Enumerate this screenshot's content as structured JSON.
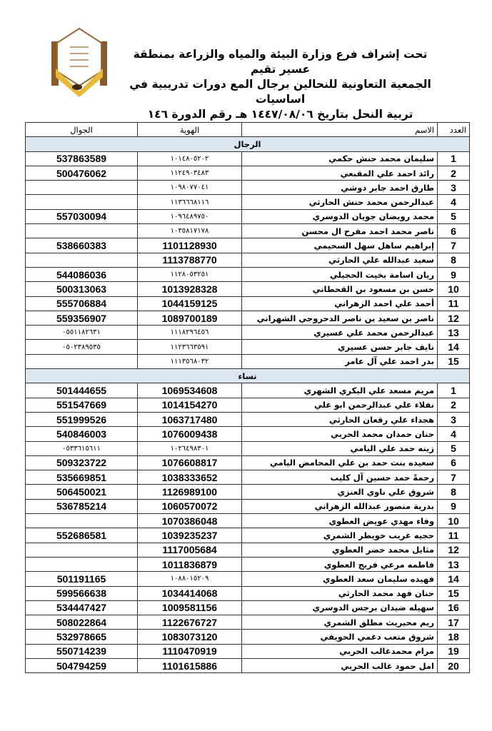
{
  "logo": {
    "text": "الجمعية التعاونية للنحالين برجال ألمع"
  },
  "header": {
    "lines": [
      "تحت إشراف فرع وزارة البيئة والمياه والزراعة بمنطقة عسير تقيم",
      "الجمعية التعاونية للنحالين برجال المع دورات تدريبية في اساسيات",
      "تربية النحل بتاريخ ١٤٤٧/٠٨/٠٦ هـ رقم الدورة ١٤٦"
    ]
  },
  "table": {
    "columns": [
      "العدد",
      "الاسم",
      "الهوية",
      "الجوال"
    ],
    "sections": [
      {
        "title": "الرجال",
        "rows": [
          [
            "1",
            "سليمان محمد حنش حكمي",
            "١٠١٤٨٠٥٢٠٢",
            "537863589"
          ],
          [
            "2",
            "رائد احمد علي المقبعي",
            "١١٢٤٩٠٣٤٨٣",
            "500476062"
          ],
          [
            "3",
            "طارق احمد جابر دوشي",
            "١٠٩٨٠٧٧٠٤١",
            ""
          ],
          [
            "4",
            "عبدالرحمن محمد حنش الحارثي",
            "١١٣٦٦٦٨١١٦",
            ""
          ],
          [
            "5",
            "محمد رويضان جويان الدوسري",
            "١٠٩٦٤٨٩٧٥٠",
            "557030094"
          ],
          [
            "6",
            "ناصر محمد احمد مفرح ال محسن",
            "١٠٣٥٨١٧١٧٨",
            ""
          ],
          [
            "7",
            "إبراهيم ساهل سهل السحيمي",
            "1101128930",
            "538660383"
          ],
          [
            "8",
            "سعيد عبدالله علي الحارثي",
            "1113788770",
            ""
          ],
          [
            "9",
            "ريان اسامة بخيت الحجيلي",
            "١١٢٨٠٥٣٢٥١",
            "544086036"
          ],
          [
            "10",
            "حسن بن مسعود بن القحطاني",
            "1013928328",
            "500313063"
          ],
          [
            "11",
            "أحمد علي احمد الزهراني",
            "1044159125",
            "555706884"
          ],
          [
            "12",
            "ناصر بن سعيد بن ناصر الدحروجي الشهراني",
            "1089700189",
            "559356907"
          ],
          [
            "13",
            "عبدالرحمن محمد علي عسيري",
            "١١١٨٢٩٦٤٥٦",
            "٠٥٥١١٨٢٦٣١"
          ],
          [
            "14",
            "نايف جابر حسن عسيري",
            "١١٢٣٦٦٣٥٩١",
            "٠٥٠٢٣٨٩٥٣٥"
          ],
          [
            "15",
            "بدر احمد علي آل عامر",
            "١١١٣٥٦٨٠٣٢",
            ""
          ]
        ]
      },
      {
        "title": "نساء",
        "rows": [
          [
            "1",
            "مريم مسعد علي البكري الشهري",
            "1069534608",
            "501444655"
          ],
          [
            "2",
            "نفلاء علي عبدالرحمن ابو علي",
            "1014154270",
            "551547669"
          ],
          [
            "3",
            "هجداء علي رقعان الحارثي",
            "1063717480",
            "551999526"
          ],
          [
            "4",
            "حنان حمدان محمد الحربي",
            "1076009438",
            "540846003"
          ],
          [
            "5",
            "زينه حمد علي اليامي",
            "١٠٢٦٤٩٨٣٠١",
            "٠٥٣٣٦١٥٦١١"
          ],
          [
            "6",
            "سعيده بنت حمد بن علي المحامض اليامي",
            "1076608817",
            "509323722"
          ],
          [
            "7",
            "رحمةً حمد حسين آل كليب",
            "1038333652",
            "535669851"
          ],
          [
            "8",
            "شروق علي ناوي العنزي",
            "1126989100",
            "506450021"
          ],
          [
            "9",
            "بدرية منصور عبدالله الزهراني",
            "1060570072",
            "536785214"
          ],
          [
            "10",
            "وفاء مهدي عويض العطوي",
            "1070386048",
            ""
          ],
          [
            "11",
            "حجيه غريب خويطر الشمري",
            "1039235237",
            "552686581"
          ],
          [
            "12",
            "مثايل محمد خضر العطوي",
            "1117005684",
            ""
          ],
          [
            "13",
            "فاطمه مرعي فريج العطوي",
            "1011836879",
            ""
          ],
          [
            "14",
            "فهيده سليمان سعد العطوي",
            "١٠٨٨٠١٥٢٠٩",
            "501191165"
          ],
          [
            "15",
            "حنان فهد محمد الحارثي",
            "1034414068",
            "599566638"
          ],
          [
            "16",
            "سهيله ضيدان برجس الدوسري",
            "1009581156",
            "534447427"
          ],
          [
            "17",
            "ريم محيريث مطلق الشمري",
            "1122676727",
            "508022864"
          ],
          [
            "18",
            "شروق متعب دغمي الحويفي",
            "1083073120",
            "532978665"
          ],
          [
            "19",
            "مرام محمدغالب الحربي",
            "1110470919",
            "550714239"
          ],
          [
            "20",
            "امل حمود غالب الحربي",
            "1101615886",
            "504794259"
          ]
        ]
      }
    ]
  },
  "colors": {
    "section_bg": "#dce6f1",
    "logo_brown": "#8a5a2b",
    "logo_gold": "#e8b83a"
  }
}
